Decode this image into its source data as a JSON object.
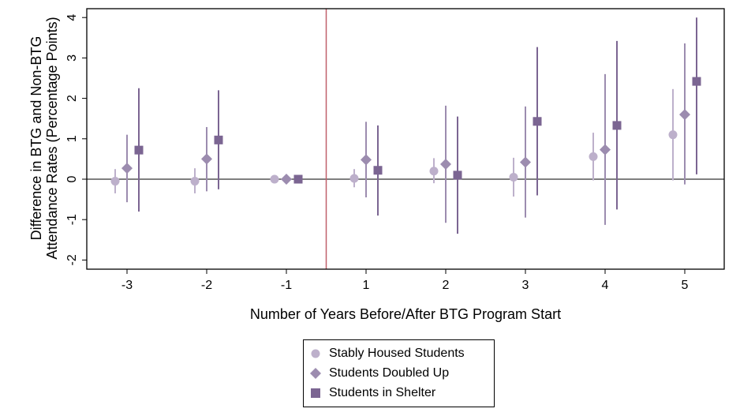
{
  "chart_data": {
    "type": "scatter",
    "title": "",
    "xlabel": "Number of Years Before/After BTG Program Start",
    "ylabel_lines": [
      "Difference in BTG and Non-BTG",
      "Attendance Rates (Percentage Points)"
    ],
    "categories": [
      "-3",
      "-2",
      "-1",
      "1",
      "2",
      "3",
      "4",
      "5"
    ],
    "yticks": [
      "-2",
      "-1",
      "0",
      "1",
      "2",
      "3",
      "4"
    ],
    "ylim": [
      -2.2,
      4.2
    ],
    "reference_line_between": [
      "-1",
      "1"
    ],
    "series": [
      {
        "name": "Stably Housed Students",
        "marker": "circle",
        "color": "#bdb0cb",
        "values": [
          -0.05,
          -0.05,
          0,
          0.02,
          0.2,
          0.05,
          0.56,
          1.1
        ],
        "ci_low": [
          -0.35,
          -0.35,
          0,
          -0.2,
          -0.1,
          -0.43,
          -0.03,
          -0.03
        ],
        "ci_high": [
          0.25,
          0.27,
          0,
          0.25,
          0.52,
          0.53,
          1.15,
          2.23
        ]
      },
      {
        "name": "Students Doubled Up",
        "marker": "diamond",
        "color": "#9c8caf",
        "values": [
          0.27,
          0.5,
          0,
          0.48,
          0.37,
          0.42,
          0.73,
          1.6
        ],
        "ci_low": [
          -0.57,
          -0.3,
          0,
          -0.45,
          -1.08,
          -0.95,
          -1.13,
          -0.13
        ],
        "ci_high": [
          1.1,
          1.29,
          0,
          1.42,
          1.82,
          1.8,
          2.6,
          3.36
        ]
      },
      {
        "name": "Students in Shelter",
        "marker": "square",
        "color": "#7b6592",
        "values": [
          0.72,
          0.97,
          0,
          0.22,
          0.1,
          1.43,
          1.33,
          2.42
        ],
        "ci_low": [
          -0.8,
          -0.25,
          0,
          -0.9,
          -1.35,
          -0.4,
          -0.75,
          0.12
        ],
        "ci_high": [
          2.25,
          2.2,
          0,
          1.33,
          1.55,
          3.27,
          3.42,
          4.0
        ]
      }
    ],
    "legend_position": "bottom-center",
    "reference_line_color": "#c0606a"
  }
}
